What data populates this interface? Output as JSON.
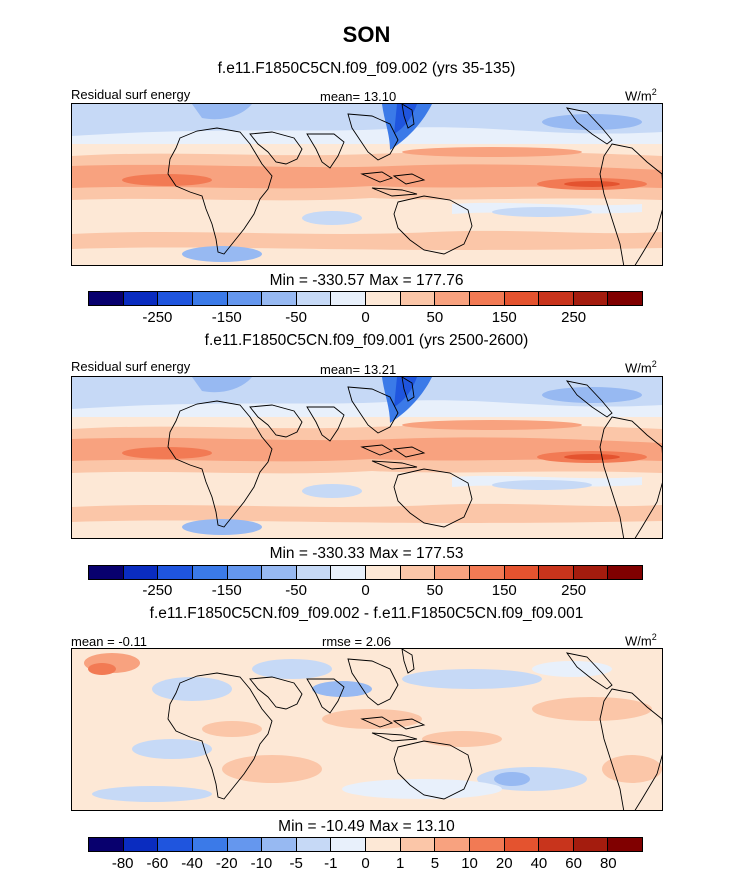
{
  "title": "SON",
  "units_base": "W/m",
  "units_exp": "2",
  "panels": [
    {
      "subtitle": "f.e11.F1850C5CN.f09_f09.002 (yrs 35-135)",
      "left_label": "Residual surf energy",
      "center_label": "mean=  13.10",
      "minmax": "Min = -330.57 Max = 177.76"
    },
    {
      "subtitle": "f.e11.F1850C5CN.f09_f09.001 (yrs 2500-2600)",
      "left_label": "Residual surf energy",
      "center_label": "mean=  13.21",
      "minmax": "Min = -330.33 Max = 177.53"
    },
    {
      "subtitle": "f.e11.F1850C5CN.f09_f09.002 - f.e11.F1850C5CN.f09_f09.001",
      "left_label": "mean =  -0.11",
      "center_label": "rmse =   2.06",
      "minmax": "Min = -10.49 Max =  13.10"
    }
  ],
  "colorbars": {
    "field": {
      "colors": [
        "#08006e",
        "#0a2cc0",
        "#1f55de",
        "#3b7ae8",
        "#6597ee",
        "#97b9f2",
        "#c6d9f6",
        "#e8f0fb",
        "#fde8d6",
        "#fbc6a8",
        "#f8a27f",
        "#f27a54",
        "#e4532f",
        "#c8341c",
        "#a41c0e",
        "#800000"
      ],
      "ticks": [
        "-250",
        "-150",
        "-50",
        "0",
        "50",
        "150",
        "250"
      ]
    },
    "diff": {
      "colors": [
        "#08006e",
        "#0a2cc0",
        "#1f55de",
        "#3b7ae8",
        "#6597ee",
        "#97b9f2",
        "#c6d9f6",
        "#e8f0fb",
        "#fde8d6",
        "#fbc6a8",
        "#f8a27f",
        "#f27a54",
        "#e4532f",
        "#c8341c",
        "#a41c0e",
        "#800000"
      ],
      "ticks": [
        "-80",
        "-60",
        "-40",
        "-20",
        "-10",
        "-5",
        "-1",
        "0",
        "1",
        "5",
        "10",
        "20",
        "40",
        "60",
        "80"
      ]
    }
  },
  "chart_data": {
    "type": "heatmap",
    "title": "SON",
    "variable": "Residual surf energy",
    "units": "W/m2",
    "panels": [
      {
        "name": "f.e11.F1850C5CN.f09_f09.002 (yrs 35-135)",
        "mean": 13.1,
        "min": -330.57,
        "max": 177.76,
        "levels": [
          -300,
          -250,
          -200,
          -150,
          -100,
          -50,
          -25,
          0,
          25,
          50,
          100,
          150,
          200,
          250,
          300
        ]
      },
      {
        "name": "f.e11.F1850C5CN.f09_f09.001 (yrs 2500-2600)",
        "mean": 13.21,
        "min": -330.33,
        "max": 177.53,
        "levels": [
          -300,
          -250,
          -200,
          -150,
          -100,
          -50,
          -25,
          0,
          25,
          50,
          100,
          150,
          200,
          250,
          300
        ]
      },
      {
        "name": "f.e11.F1850C5CN.f09_f09.002 - f.e11.F1850C5CN.f09_f09.001",
        "mean": -0.11,
        "rmse": 2.06,
        "min": -10.49,
        "max": 13.1,
        "levels": [
          -80,
          -60,
          -40,
          -20,
          -10,
          -5,
          -1,
          0,
          1,
          5,
          10,
          20,
          40,
          60,
          80
        ]
      }
    ]
  }
}
